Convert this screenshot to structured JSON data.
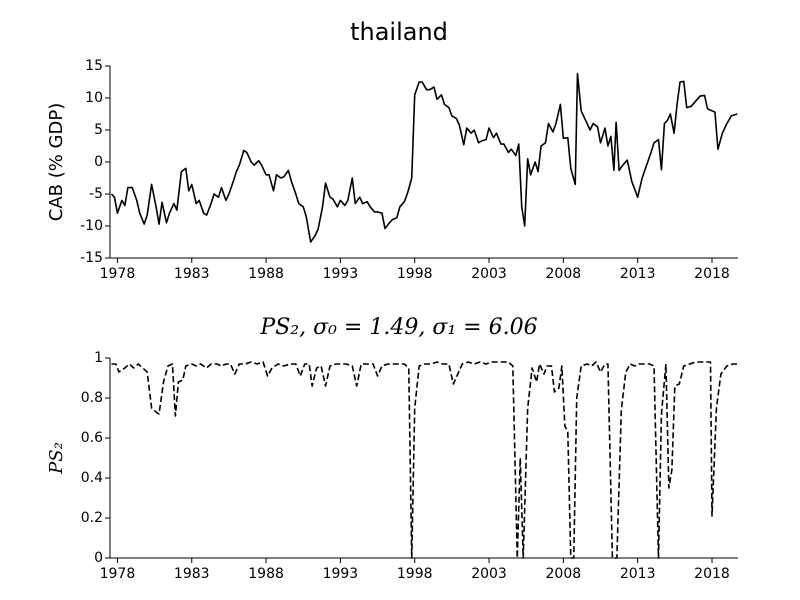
{
  "chart_data": [
    {
      "type": "line",
      "title": "thailand",
      "y_label": "CAB (% GDP)",
      "xlim": [
        1977.5,
        2019.75
      ],
      "xticks": [
        1978,
        1983,
        1988,
        1993,
        1998,
        2003,
        2008,
        2013,
        2018
      ],
      "ylim": [
        -15,
        15
      ],
      "yticks": [
        -15,
        -10,
        -5,
        0,
        5,
        10,
        15
      ],
      "series": [
        {
          "name": "CAB",
          "color": "#000000",
          "linestyle": "solid",
          "x": [
            1977.6,
            1977.8,
            1978.0,
            1978.3,
            1978.5,
            1978.7,
            1979.0,
            1979.3,
            1979.5,
            1979.8,
            1980.0,
            1980.3,
            1980.6,
            1980.8,
            1981.0,
            1981.3,
            1981.5,
            1981.8,
            1982.0,
            1982.3,
            1982.6,
            1982.8,
            1983.0,
            1983.3,
            1983.5,
            1983.8,
            1984.0,
            1984.3,
            1984.5,
            1984.8,
            1985.0,
            1985.3,
            1985.5,
            1985.8,
            1986.0,
            1986.2,
            1986.5,
            1986.7,
            1987.0,
            1987.2,
            1987.5,
            1987.7,
            1988.0,
            1988.2,
            1988.5,
            1988.7,
            1989.0,
            1989.2,
            1989.5,
            1989.7,
            1990.0,
            1990.2,
            1990.5,
            1990.7,
            1991.0,
            1991.3,
            1991.5,
            1991.8,
            1992.0,
            1992.3,
            1992.5,
            1992.8,
            1993.0,
            1993.3,
            1993.5,
            1993.8,
            1994.0,
            1994.3,
            1994.5,
            1994.8,
            1995.0,
            1995.3,
            1995.5,
            1995.8,
            1996.0,
            1996.3,
            1996.5,
            1996.8,
            1997.0,
            1997.3,
            1997.5,
            1997.8,
            1998.0,
            1998.3,
            1998.5,
            1998.8,
            1999.0,
            1999.3,
            1999.5,
            1999.8,
            2000.0,
            2000.3,
            2000.5,
            2000.8,
            2001.0,
            2001.3,
            2001.5,
            2001.8,
            2002.0,
            2002.3,
            2002.5,
            2002.8,
            2003.0,
            2003.3,
            2003.5,
            2003.8,
            2004.0,
            2004.3,
            2004.5,
            2004.8,
            2005.0,
            2005.2,
            2005.4,
            2005.6,
            2005.8,
            2006.1,
            2006.3,
            2006.5,
            2006.8,
            2007.0,
            2007.3,
            2007.5,
            2007.8,
            2008.0,
            2008.3,
            2008.5,
            2008.8,
            2008.95,
            2009.2,
            2009.5,
            2009.8,
            2010.0,
            2010.3,
            2010.5,
            2010.8,
            2011.0,
            2011.2,
            2011.4,
            2011.55,
            2011.75,
            2012.0,
            2012.3,
            2012.6,
            2013.0,
            2013.3,
            2013.6,
            2013.9,
            2014.1,
            2014.4,
            2014.6,
            2014.8,
            2015.0,
            2015.2,
            2015.45,
            2015.65,
            2015.85,
            2016.1,
            2016.3,
            2016.6,
            2016.9,
            2017.2,
            2017.5,
            2017.7,
            2018.0,
            2018.2,
            2018.4,
            2018.7,
            2019.0,
            2019.3,
            2019.7
          ],
          "values": [
            -5,
            -5.5,
            -8,
            -6,
            -6.8,
            -4,
            -4,
            -6,
            -8,
            -9.7,
            -8.3,
            -3.5,
            -7,
            -9.7,
            -6.3,
            -9.5,
            -8,
            -6.5,
            -7.5,
            -1.5,
            -1,
            -4.5,
            -3.5,
            -6.5,
            -6,
            -8,
            -8.3,
            -6.5,
            -5,
            -5.5,
            -4,
            -6,
            -5,
            -3,
            -1.5,
            -0.5,
            1.8,
            1.5,
            0,
            -0.5,
            0.2,
            -0.5,
            -2,
            -2,
            -4.5,
            -2,
            -2.5,
            -2.3,
            -1.3,
            -3,
            -5,
            -6.5,
            -7,
            -8.5,
            -12.5,
            -11.5,
            -10.5,
            -7,
            -3.3,
            -5.5,
            -5.8,
            -7,
            -6,
            -6.8,
            -6,
            -2.5,
            -6.5,
            -5.5,
            -6.5,
            -6.2,
            -7,
            -7.8,
            -7.8,
            -8,
            -10.4,
            -9.5,
            -9,
            -8.7,
            -7,
            -6.2,
            -5,
            -2.5,
            10.5,
            12.5,
            12.5,
            11.3,
            11.3,
            11.7,
            9.8,
            10.5,
            9,
            8.5,
            7.2,
            6.8,
            5.8,
            2.7,
            5.3,
            4.5,
            5,
            3,
            3.3,
            3.5,
            5.3,
            3.8,
            4.5,
            2.8,
            2.8,
            1.5,
            2,
            1,
            2.8,
            -7,
            -10,
            0.5,
            -2,
            0,
            -1.5,
            2.5,
            3,
            6,
            4.7,
            6,
            9,
            3.7,
            3.8,
            -1,
            -3.5,
            13.8,
            8,
            6.5,
            5,
            6,
            5.5,
            3,
            5.3,
            2.5,
            4,
            -1.3,
            6.2,
            -1.3,
            -0.5,
            0.3,
            -3,
            -5.5,
            -2.5,
            -0.5,
            1.5,
            3,
            3.5,
            -1.2,
            6,
            6.5,
            7.5,
            4.5,
            9,
            12.5,
            12.6,
            8.5,
            8.7,
            9.5,
            10.3,
            10.4,
            8.3,
            8,
            7.8,
            2,
            4.5,
            6,
            7.2,
            7.5
          ]
        }
      ]
    },
    {
      "type": "line",
      "title": "PS₂, σ₀ = 1.49, σ₁ = 6.06",
      "y_label": "PS₂",
      "xlim": [
        1977.5,
        2019.75
      ],
      "xticks": [
        1978,
        1983,
        1988,
        1993,
        1998,
        2003,
        2008,
        2013,
        2018
      ],
      "ylim": [
        0,
        1
      ],
      "yticks": [
        0,
        0.2,
        0.4,
        0.6,
        0.8,
        1
      ],
      "series": [
        {
          "name": "PS₂",
          "color": "#000000",
          "linestyle": "dashed",
          "x": [
            1977.6,
            1977.9,
            1978.1,
            1978.5,
            1978.8,
            1979.1,
            1979.4,
            1979.7,
            1980.0,
            1980.3,
            1980.6,
            1980.8,
            1981.1,
            1981.4,
            1981.7,
            1981.9,
            1982.1,
            1982.4,
            1982.6,
            1983.0,
            1983.3,
            1983.6,
            1984.0,
            1984.3,
            1984.7,
            1985.0,
            1985.3,
            1985.6,
            1985.9,
            1986.2,
            1986.6,
            1987.0,
            1987.4,
            1987.8,
            1988.1,
            1988.4,
            1988.8,
            1989.2,
            1989.6,
            1990.0,
            1990.3,
            1990.6,
            1990.9,
            1991.1,
            1991.4,
            1991.7,
            1992.0,
            1992.3,
            1992.7,
            1993.0,
            1993.4,
            1993.8,
            1994.1,
            1994.4,
            1994.8,
            1995.2,
            1995.5,
            1995.8,
            1996.2,
            1996.6,
            1997.0,
            1997.3,
            1997.6,
            1997.8,
            1998.0,
            1998.3,
            1998.7,
            1999.1,
            1999.5,
            1999.9,
            2000.3,
            2000.6,
            2000.9,
            2001.2,
            2001.6,
            2002.0,
            2002.4,
            2002.8,
            2003.2,
            2003.6,
            2004.0,
            2004.3,
            2004.6,
            2004.9,
            2005.1,
            2005.3,
            2005.6,
            2005.9,
            2006.2,
            2006.4,
            2006.7,
            2006.9,
            2007.2,
            2007.4,
            2007.7,
            2007.9,
            2008.1,
            2008.3,
            2008.5,
            2008.7,
            2008.9,
            2009.2,
            2009.6,
            2009.9,
            2010.2,
            2010.5,
            2010.8,
            2011.0,
            2011.3,
            2011.6,
            2011.9,
            2012.2,
            2012.5,
            2012.8,
            2013.1,
            2013.4,
            2013.8,
            2014.1,
            2014.4,
            2014.6,
            2014.9,
            2015.1,
            2015.3,
            2015.5,
            2015.8,
            2016.1,
            2016.5,
            2016.9,
            2017.3,
            2017.6,
            2017.9,
            2018.0,
            2018.3,
            2018.6,
            2019.0,
            2019.4,
            2019.7
          ],
          "values": [
            0.97,
            0.97,
            0.93,
            0.95,
            0.97,
            0.95,
            0.97,
            0.95,
            0.93,
            0.75,
            0.73,
            0.72,
            0.88,
            0.96,
            0.97,
            0.71,
            0.88,
            0.89,
            0.96,
            0.97,
            0.96,
            0.97,
            0.95,
            0.97,
            0.97,
            0.96,
            0.97,
            0.97,
            0.92,
            0.97,
            0.97,
            0.98,
            0.97,
            0.98,
            0.91,
            0.95,
            0.97,
            0.96,
            0.97,
            0.97,
            0.91,
            0.97,
            0.97,
            0.86,
            0.95,
            0.96,
            0.86,
            0.96,
            0.97,
            0.97,
            0.97,
            0.96,
            0.86,
            0.97,
            0.97,
            0.97,
            0.91,
            0.96,
            0.97,
            0.97,
            0.97,
            0.97,
            0.95,
            0,
            0.75,
            0.96,
            0.97,
            0.97,
            0.98,
            0.97,
            0.97,
            0.87,
            0.92,
            0.97,
            0.98,
            0.97,
            0.98,
            0.97,
            0.98,
            0.98,
            0.98,
            0.98,
            0.96,
            0,
            0.5,
            0,
            0.75,
            0.95,
            0.88,
            0.97,
            0.92,
            0.96,
            0.96,
            0.83,
            0.85,
            0.96,
            0.66,
            0.63,
            0,
            0,
            0.8,
            0.96,
            0.97,
            0.96,
            0.98,
            0.93,
            0.97,
            0.97,
            0,
            0,
            0.74,
            0.93,
            0.97,
            0.96,
            0.97,
            0.97,
            0.97,
            0.96,
            0,
            0.72,
            0.97,
            0.35,
            0.44,
            0.86,
            0.87,
            0.96,
            0.97,
            0.98,
            0.98,
            0.98,
            0.98,
            0.21,
            0.75,
            0.92,
            0.96,
            0.97,
            0.97
          ]
        }
      ]
    }
  ]
}
